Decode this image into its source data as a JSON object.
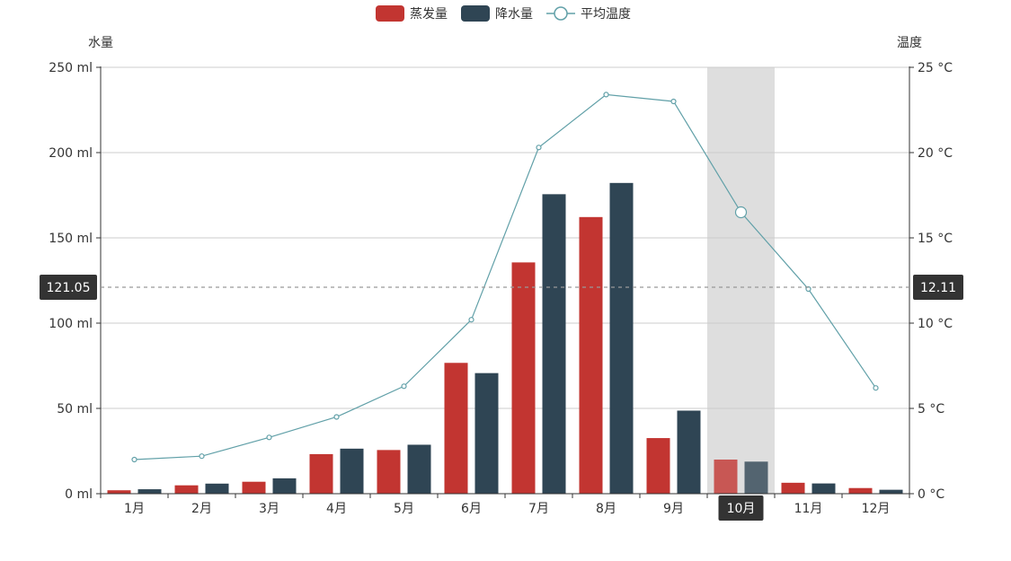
{
  "chart_data": {
    "type": "bar",
    "categories": [
      "1月",
      "2月",
      "3月",
      "4月",
      "5月",
      "6月",
      "7月",
      "8月",
      "9月",
      "10月",
      "11月",
      "12月"
    ],
    "series": [
      {
        "name": "蒸发量",
        "type": "bar",
        "axis": "left",
        "color": "#c23531",
        "values": [
          2.0,
          4.9,
          7.0,
          23.2,
          25.6,
          76.7,
          135.6,
          162.2,
          32.6,
          20.0,
          6.4,
          3.3
        ]
      },
      {
        "name": "降水量",
        "type": "bar",
        "axis": "left",
        "color": "#2f4554",
        "values": [
          2.6,
          5.9,
          9.0,
          26.4,
          28.7,
          70.7,
          175.6,
          182.2,
          48.7,
          18.8,
          6.0,
          2.3
        ]
      },
      {
        "name": "平均温度",
        "type": "line",
        "axis": "right",
        "color": "#61a0a8",
        "values": [
          2.0,
          2.2,
          3.3,
          4.5,
          6.3,
          10.2,
          20.3,
          23.4,
          23.0,
          16.5,
          12.0,
          6.2
        ]
      }
    ],
    "y_left": {
      "name": "水量",
      "min": 0,
      "max": 250,
      "interval": 50,
      "unit": " ml",
      "ticks": [
        "0 ml",
        "50 ml",
        "100 ml",
        "150 ml",
        "200 ml",
        "250 ml"
      ]
    },
    "y_right": {
      "name": "温度",
      "min": 0,
      "max": 25,
      "interval": 5,
      "unit": " °C",
      "ticks": [
        "0 °C",
        "5 °C",
        "10 °C",
        "15 °C",
        "20 °C",
        "25 °C"
      ]
    },
    "grid": true,
    "legend_position": "top-center",
    "pointer": {
      "category_index": 9,
      "category_label": "10月",
      "left_value_label": "121.05",
      "right_value_label": "12.11"
    }
  }
}
